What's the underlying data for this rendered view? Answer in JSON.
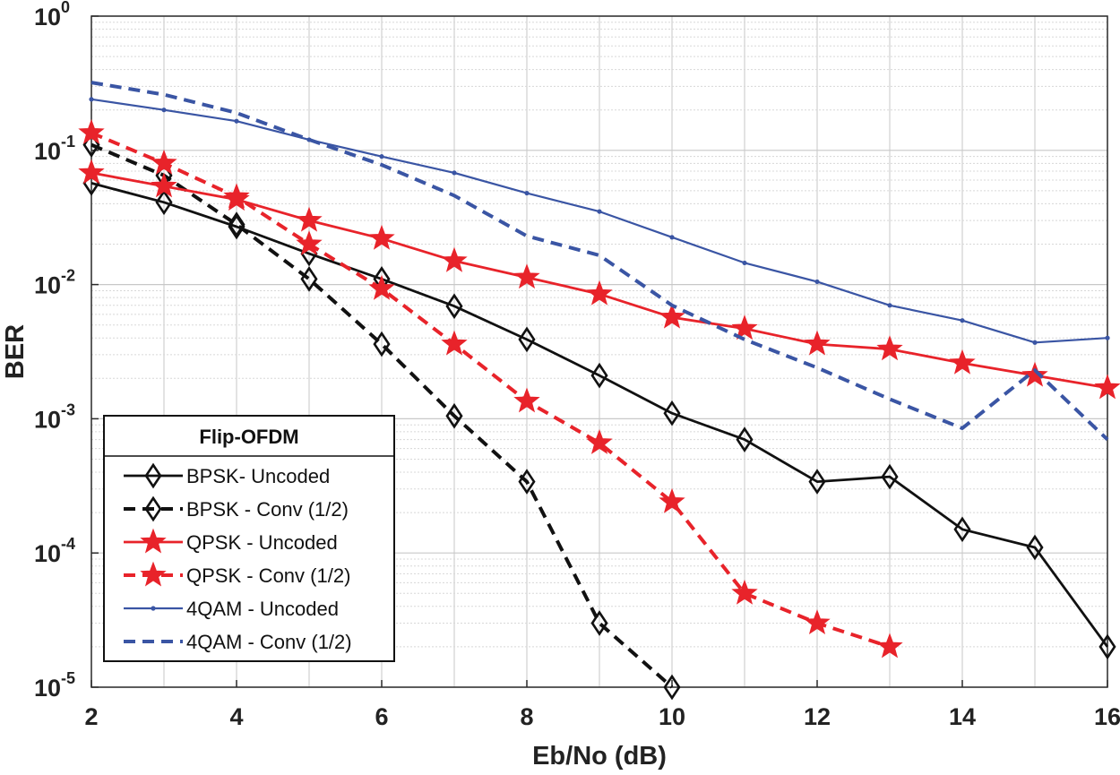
{
  "chart_data": {
    "type": "line",
    "xlabel": "Eb/No (dB)",
    "ylabel": "BER",
    "xlim": [
      2,
      16
    ],
    "ylim": [
      1e-05,
      1
    ],
    "yscale": "log",
    "grid": true,
    "x_ticks": [
      "2",
      "4",
      "6",
      "8",
      "10",
      "12",
      "14",
      "16"
    ],
    "y_ticks": [
      {
        "base": "10",
        "exp": "0"
      },
      {
        "base": "10",
        "exp": "-1"
      },
      {
        "base": "10",
        "exp": "-2"
      },
      {
        "base": "10",
        "exp": "-3"
      },
      {
        "base": "10",
        "exp": "-4"
      },
      {
        "base": "10",
        "exp": "-5"
      }
    ],
    "legend": {
      "title": "Flip-OFDM",
      "placement": "bottom-left"
    },
    "series": [
      {
        "name": "BPSK- Uncoded",
        "color": "#111111",
        "line": "solid",
        "marker": "diamond",
        "x": [
          2,
          3,
          4,
          5,
          6,
          7,
          8,
          9,
          10,
          11,
          12,
          13,
          14,
          15,
          16
        ],
        "y": [
          0.057,
          0.041,
          0.027,
          0.017,
          0.011,
          0.0069,
          0.0039,
          0.0021,
          0.0011,
          0.0007,
          0.00034,
          0.00037,
          0.00015,
          0.00011,
          2e-05
        ]
      },
      {
        "name": "BPSK - Conv (1/2)",
        "color": "#111111",
        "line": "dashed",
        "marker": "diamond",
        "x": [
          2,
          3,
          4,
          5,
          6,
          7,
          8,
          9,
          10
        ],
        "y": [
          0.11,
          0.065,
          0.028,
          0.011,
          0.0036,
          0.00105,
          0.00034,
          3e-05,
          1e-05
        ]
      },
      {
        "name": "QPSK - Uncoded",
        "color": "#e8232a",
        "line": "solid",
        "marker": "star",
        "x": [
          2,
          3,
          4,
          5,
          6,
          7,
          8,
          9,
          10,
          11,
          12,
          13,
          14,
          15,
          16
        ],
        "y": [
          0.068,
          0.054,
          0.043,
          0.03,
          0.022,
          0.015,
          0.0113,
          0.0085,
          0.0057,
          0.0047,
          0.0036,
          0.0033,
          0.0026,
          0.0021,
          0.0017
        ]
      },
      {
        "name": "QPSK - Conv (1/2)",
        "color": "#e8232a",
        "line": "dashed",
        "marker": "star",
        "x": [
          2,
          3,
          4,
          5,
          6,
          7,
          8,
          9,
          10,
          11,
          12,
          13
        ],
        "y": [
          0.135,
          0.08,
          0.045,
          0.02,
          0.0093,
          0.0036,
          0.00135,
          0.00066,
          0.00024,
          5e-05,
          3e-05,
          2e-05
        ]
      },
      {
        "name": "4QAM - Uncoded",
        "color": "#3a55a4",
        "line": "solid-thin",
        "marker": "dot",
        "x": [
          2,
          3,
          4,
          5,
          6,
          7,
          8,
          9,
          10,
          11,
          12,
          13,
          14,
          15,
          16
        ],
        "y": [
          0.24,
          0.2,
          0.165,
          0.12,
          0.09,
          0.068,
          0.048,
          0.035,
          0.0225,
          0.0145,
          0.0105,
          0.007,
          0.0054,
          0.0037,
          0.004
        ]
      },
      {
        "name": "4QAM - Conv (1/2)",
        "color": "#3a55a4",
        "line": "dashed",
        "marker": "none",
        "x": [
          2,
          3,
          4,
          5,
          6,
          7,
          8,
          9,
          10,
          11,
          12,
          13,
          14,
          15,
          16
        ],
        "y": [
          0.32,
          0.26,
          0.19,
          0.12,
          0.078,
          0.046,
          0.023,
          0.0165,
          0.007,
          0.0039,
          0.0024,
          0.0014,
          0.00085,
          0.0023,
          0.0007
        ]
      }
    ]
  }
}
